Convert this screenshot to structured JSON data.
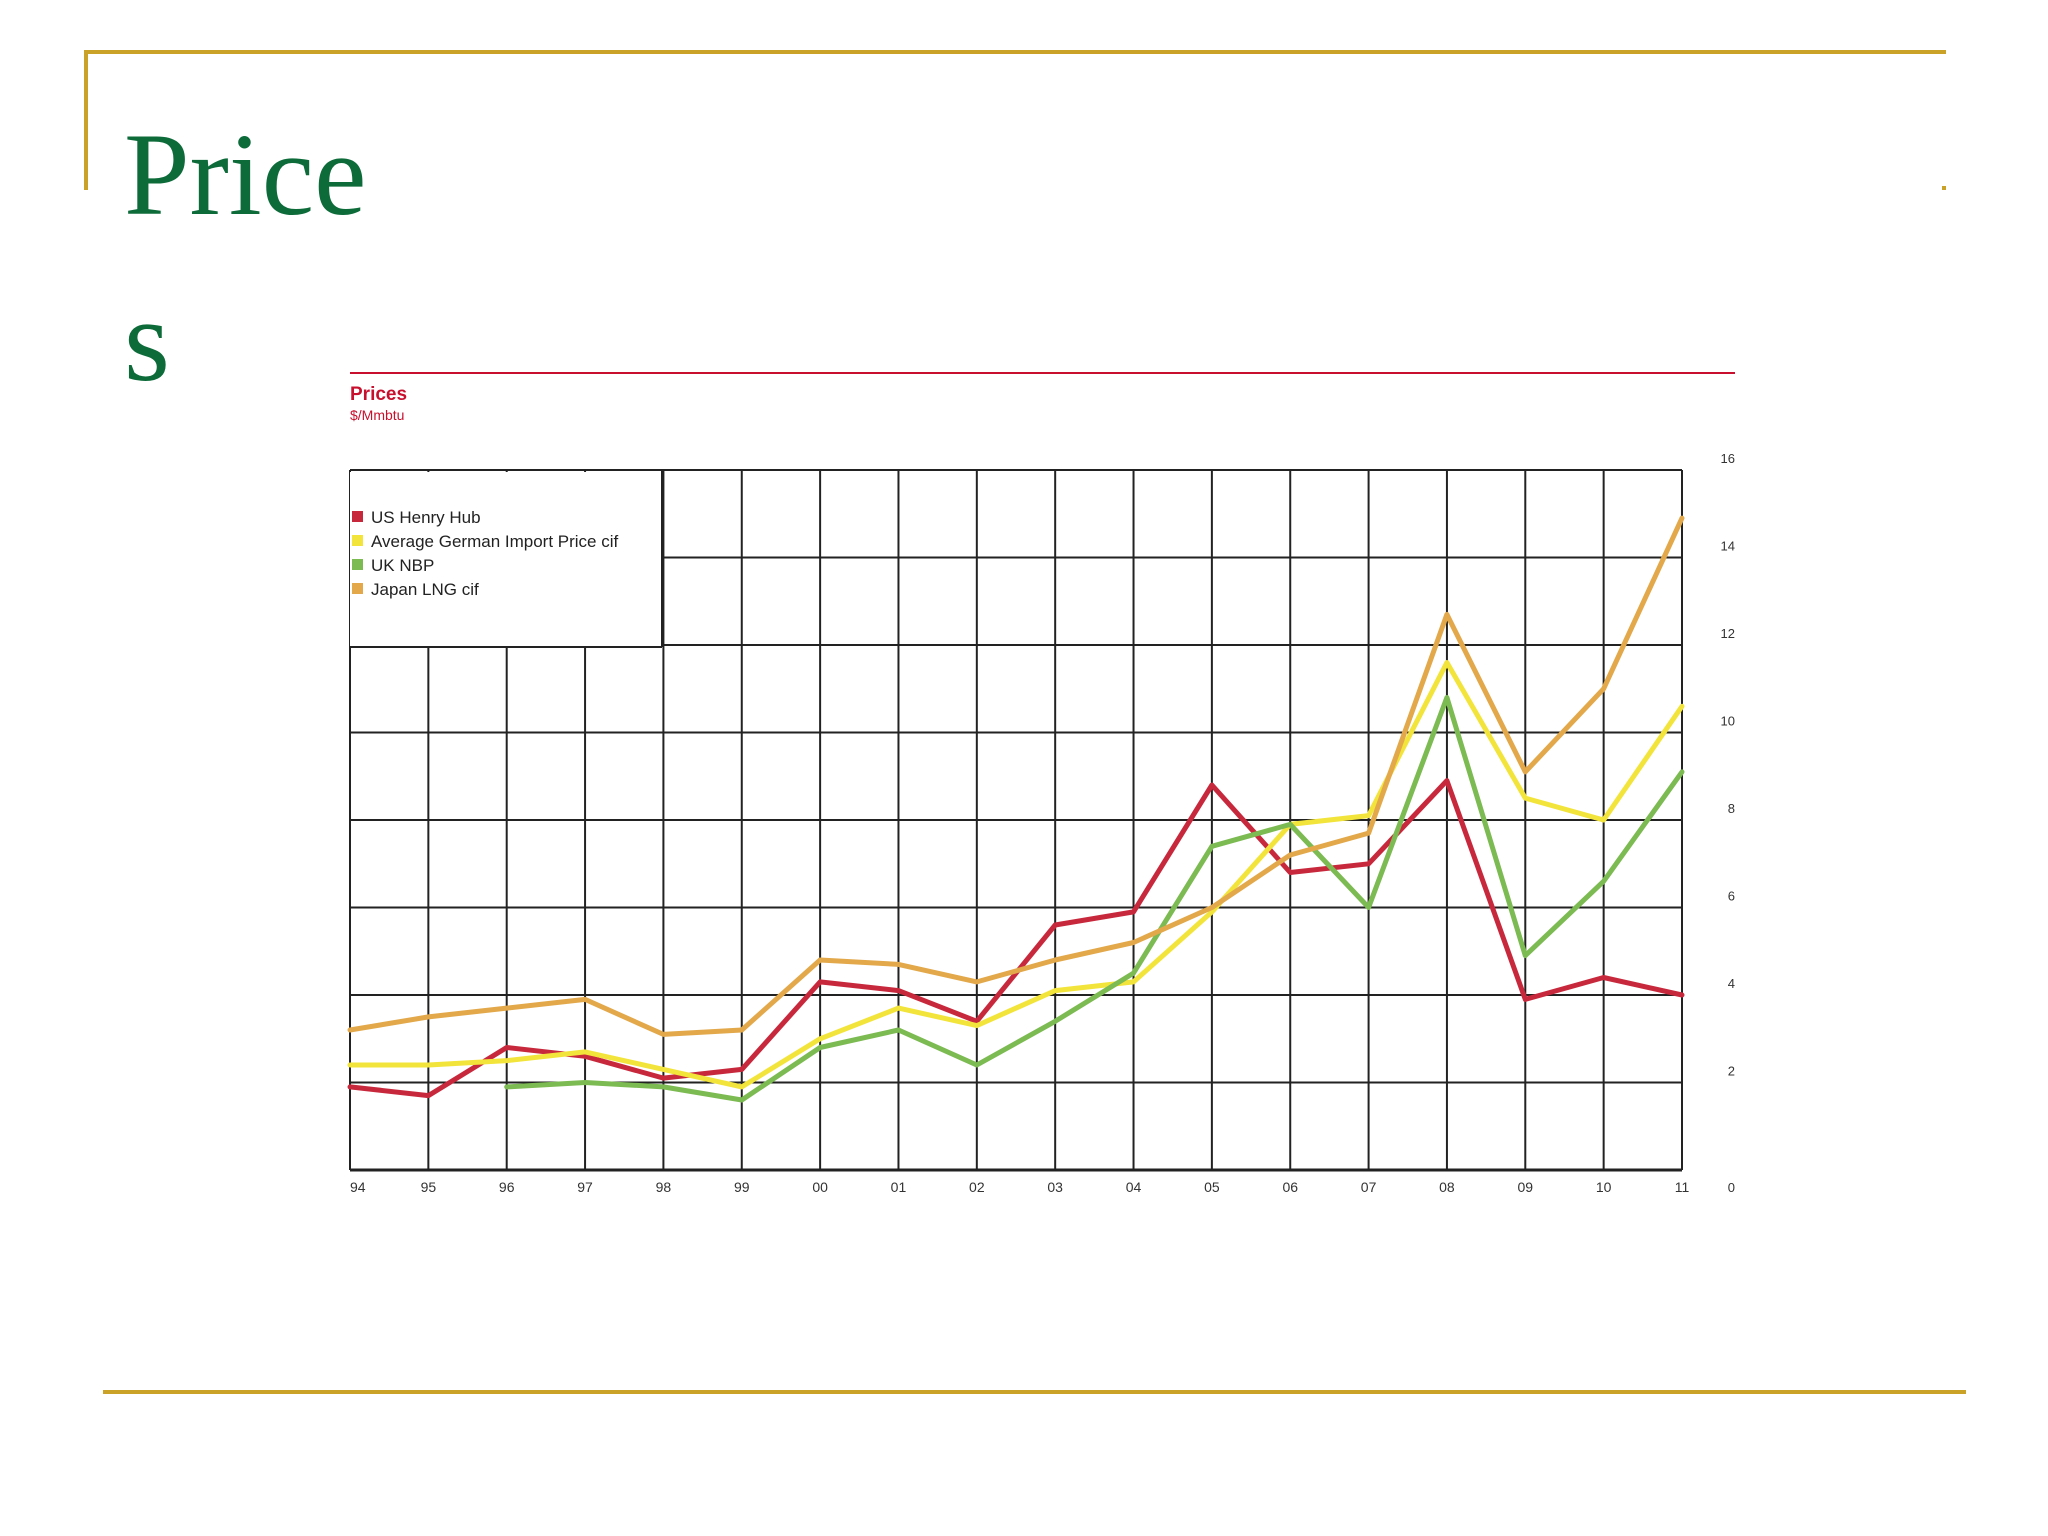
{
  "slide": {
    "title": "Prices"
  },
  "chart_data": {
    "type": "line",
    "title": "Prices",
    "subtitle": "$/Mmbtu",
    "xlabel": "",
    "ylabel": "",
    "ylim": [
      0,
      16
    ],
    "yticks": [
      "16",
      "14",
      "12",
      "10",
      "8",
      "6",
      "4",
      "2",
      "0"
    ],
    "categories": [
      "94",
      "95",
      "96",
      "97",
      "98",
      "99",
      "00",
      "01",
      "02",
      "03",
      "04",
      "05",
      "06",
      "07",
      "08",
      "09",
      "10",
      "11"
    ],
    "legend_position": "top-left",
    "grid": true,
    "accent_color": "#c8102e",
    "series": [
      {
        "name": "US Henry Hub",
        "color": "#c8283c",
        "values": [
          1.9,
          1.7,
          2.8,
          2.6,
          2.1,
          2.3,
          4.3,
          4.1,
          3.4,
          5.6,
          5.9,
          8.8,
          6.8,
          7.0,
          8.9,
          3.9,
          4.4,
          4.0
        ]
      },
      {
        "name": "Average German Import Price cif",
        "color": "#f2e43a",
        "values": [
          2.4,
          2.4,
          2.5,
          2.7,
          2.3,
          1.9,
          3.0,
          3.7,
          3.3,
          4.1,
          4.3,
          5.9,
          7.9,
          8.1,
          11.6,
          8.5,
          8.0,
          10.6
        ]
      },
      {
        "name": "UK NBP",
        "color": "#7cba52",
        "values": [
          null,
          null,
          1.9,
          2.0,
          1.9,
          1.6,
          2.8,
          3.2,
          2.4,
          3.4,
          4.5,
          7.4,
          7.9,
          6.0,
          10.8,
          4.9,
          6.6,
          9.1
        ]
      },
      {
        "name": "Japan LNG cif",
        "color": "#e2a84a",
        "values": [
          3.2,
          3.5,
          3.7,
          3.9,
          3.1,
          3.2,
          4.8,
          4.7,
          4.3,
          4.8,
          5.2,
          6.0,
          7.2,
          7.7,
          12.7,
          9.1,
          11.0,
          14.9
        ]
      }
    ]
  }
}
